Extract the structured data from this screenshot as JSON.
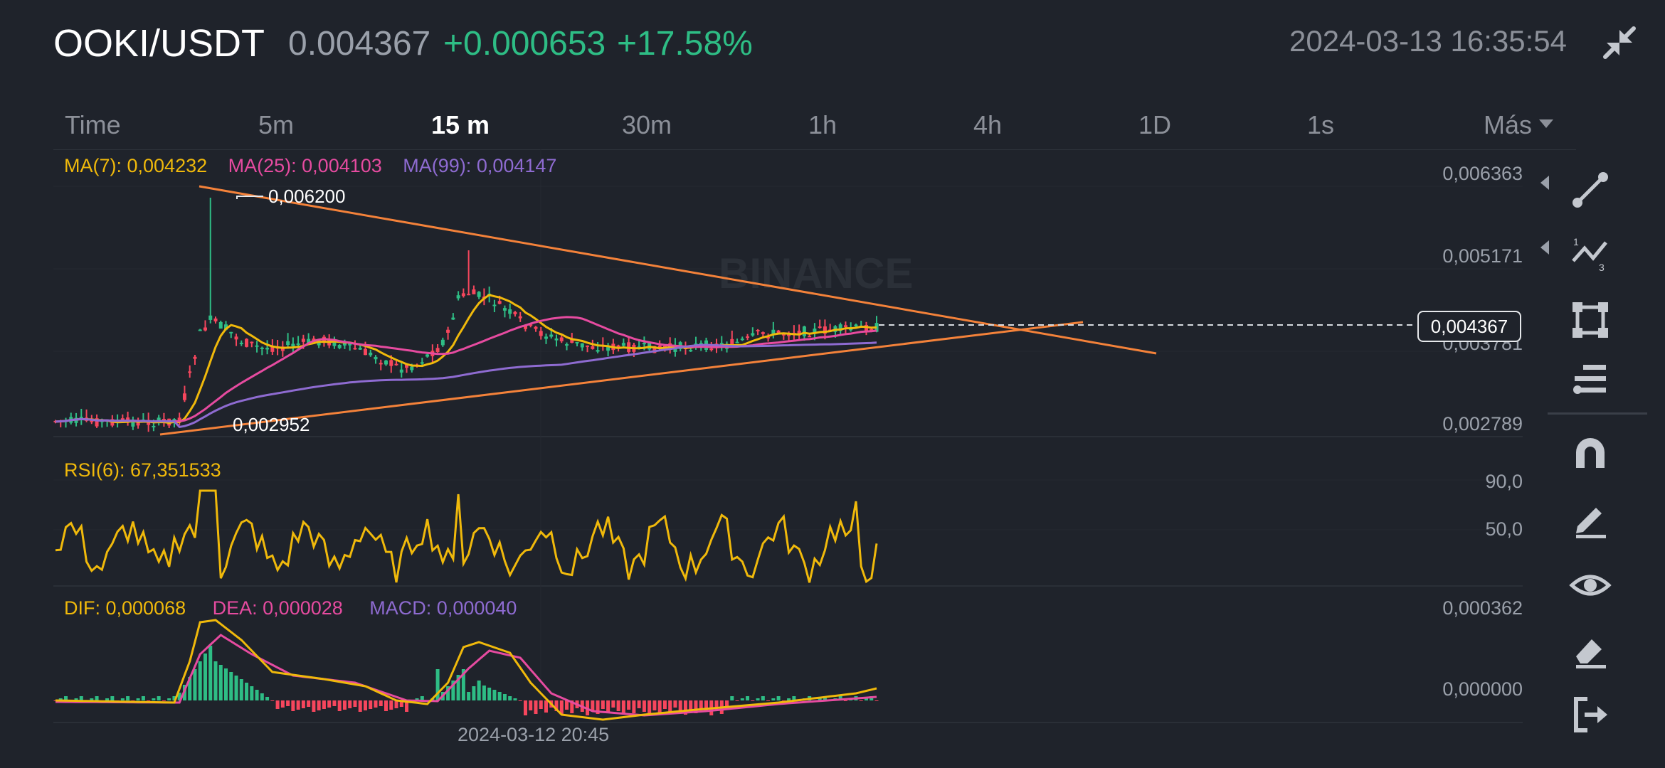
{
  "header": {
    "pair": "OOKI/USDT",
    "price": "0.004367",
    "change_abs": "+0.000653",
    "change_pct": "+17.58%",
    "datetime": "2024-03-13 16:35:54",
    "collapse_icon": "collapse-arrows-icon"
  },
  "tabs": [
    {
      "label": "Time"
    },
    {
      "label": "5m"
    },
    {
      "label": "15 m",
      "active": true
    },
    {
      "label": "30m"
    },
    {
      "label": "1h"
    },
    {
      "label": "4h"
    },
    {
      "label": "1D"
    },
    {
      "label": "1s"
    },
    {
      "label": "Más"
    }
  ],
  "main_chart": {
    "legend": {
      "ma7": "MA(7): 0,004232",
      "ma25": "MA(25): 0,004103",
      "ma99": "MA(99): 0,004147"
    },
    "y_axis": [
      "0,006363",
      "0,005171",
      "0,003781",
      "0,002789"
    ],
    "high_label": "0,006200",
    "low_label": "0,002952",
    "current_price_tag": "0,004367",
    "watermark": "BINANCE"
  },
  "rsi_panel": {
    "legend": "RSI(6): 67,351533",
    "y_axis": [
      "90,0",
      "50,0"
    ]
  },
  "macd_panel": {
    "legend": {
      "dif": "DIF: 0,000068",
      "dea": "DEA: 0,000028",
      "macd": "MACD: 0,000040"
    },
    "y_axis": [
      "0,000362",
      "0,000000"
    ]
  },
  "x_axis_label": "2024-03-12 20:45",
  "toolbar": [
    "trend-line-icon",
    "fibonacci-icon",
    "rectangle-icon",
    "indicator-list-icon",
    "magnet-icon",
    "pencil-icon",
    "visibility-eye-icon",
    "eraser-icon",
    "exit-icon"
  ],
  "colors": {
    "background": "#1f232b",
    "up": "#2ebd85",
    "down": "#f6465d",
    "ma7": "#f0b90b",
    "ma25": "#e64ba0",
    "ma99": "#8e6bd1",
    "trendline": "#f4823a"
  },
  "chart_data": {
    "type": "candlestick",
    "symbol": "OOKI/USDT",
    "interval": "15 m",
    "price_axis_ticks": [
      0.006363,
      0.005171,
      0.003781,
      0.002789
    ],
    "annotated_high": 0.0062,
    "annotated_low": 0.002952,
    "last_price": 0.004367,
    "ma_values": {
      "MA(7)": 0.004232,
      "MA(25)": 0.004103,
      "MA(99)": 0.004147
    },
    "rsi": {
      "period": 6,
      "value": 67.351533,
      "ticks": [
        90.0,
        50.0
      ]
    },
    "macd": {
      "dif": 6.8e-05,
      "dea": 2.8e-05,
      "macd": 4e-05,
      "ticks": [
        0.000362,
        0.0
      ]
    },
    "x_tick": "2024-03-12 20:45"
  }
}
